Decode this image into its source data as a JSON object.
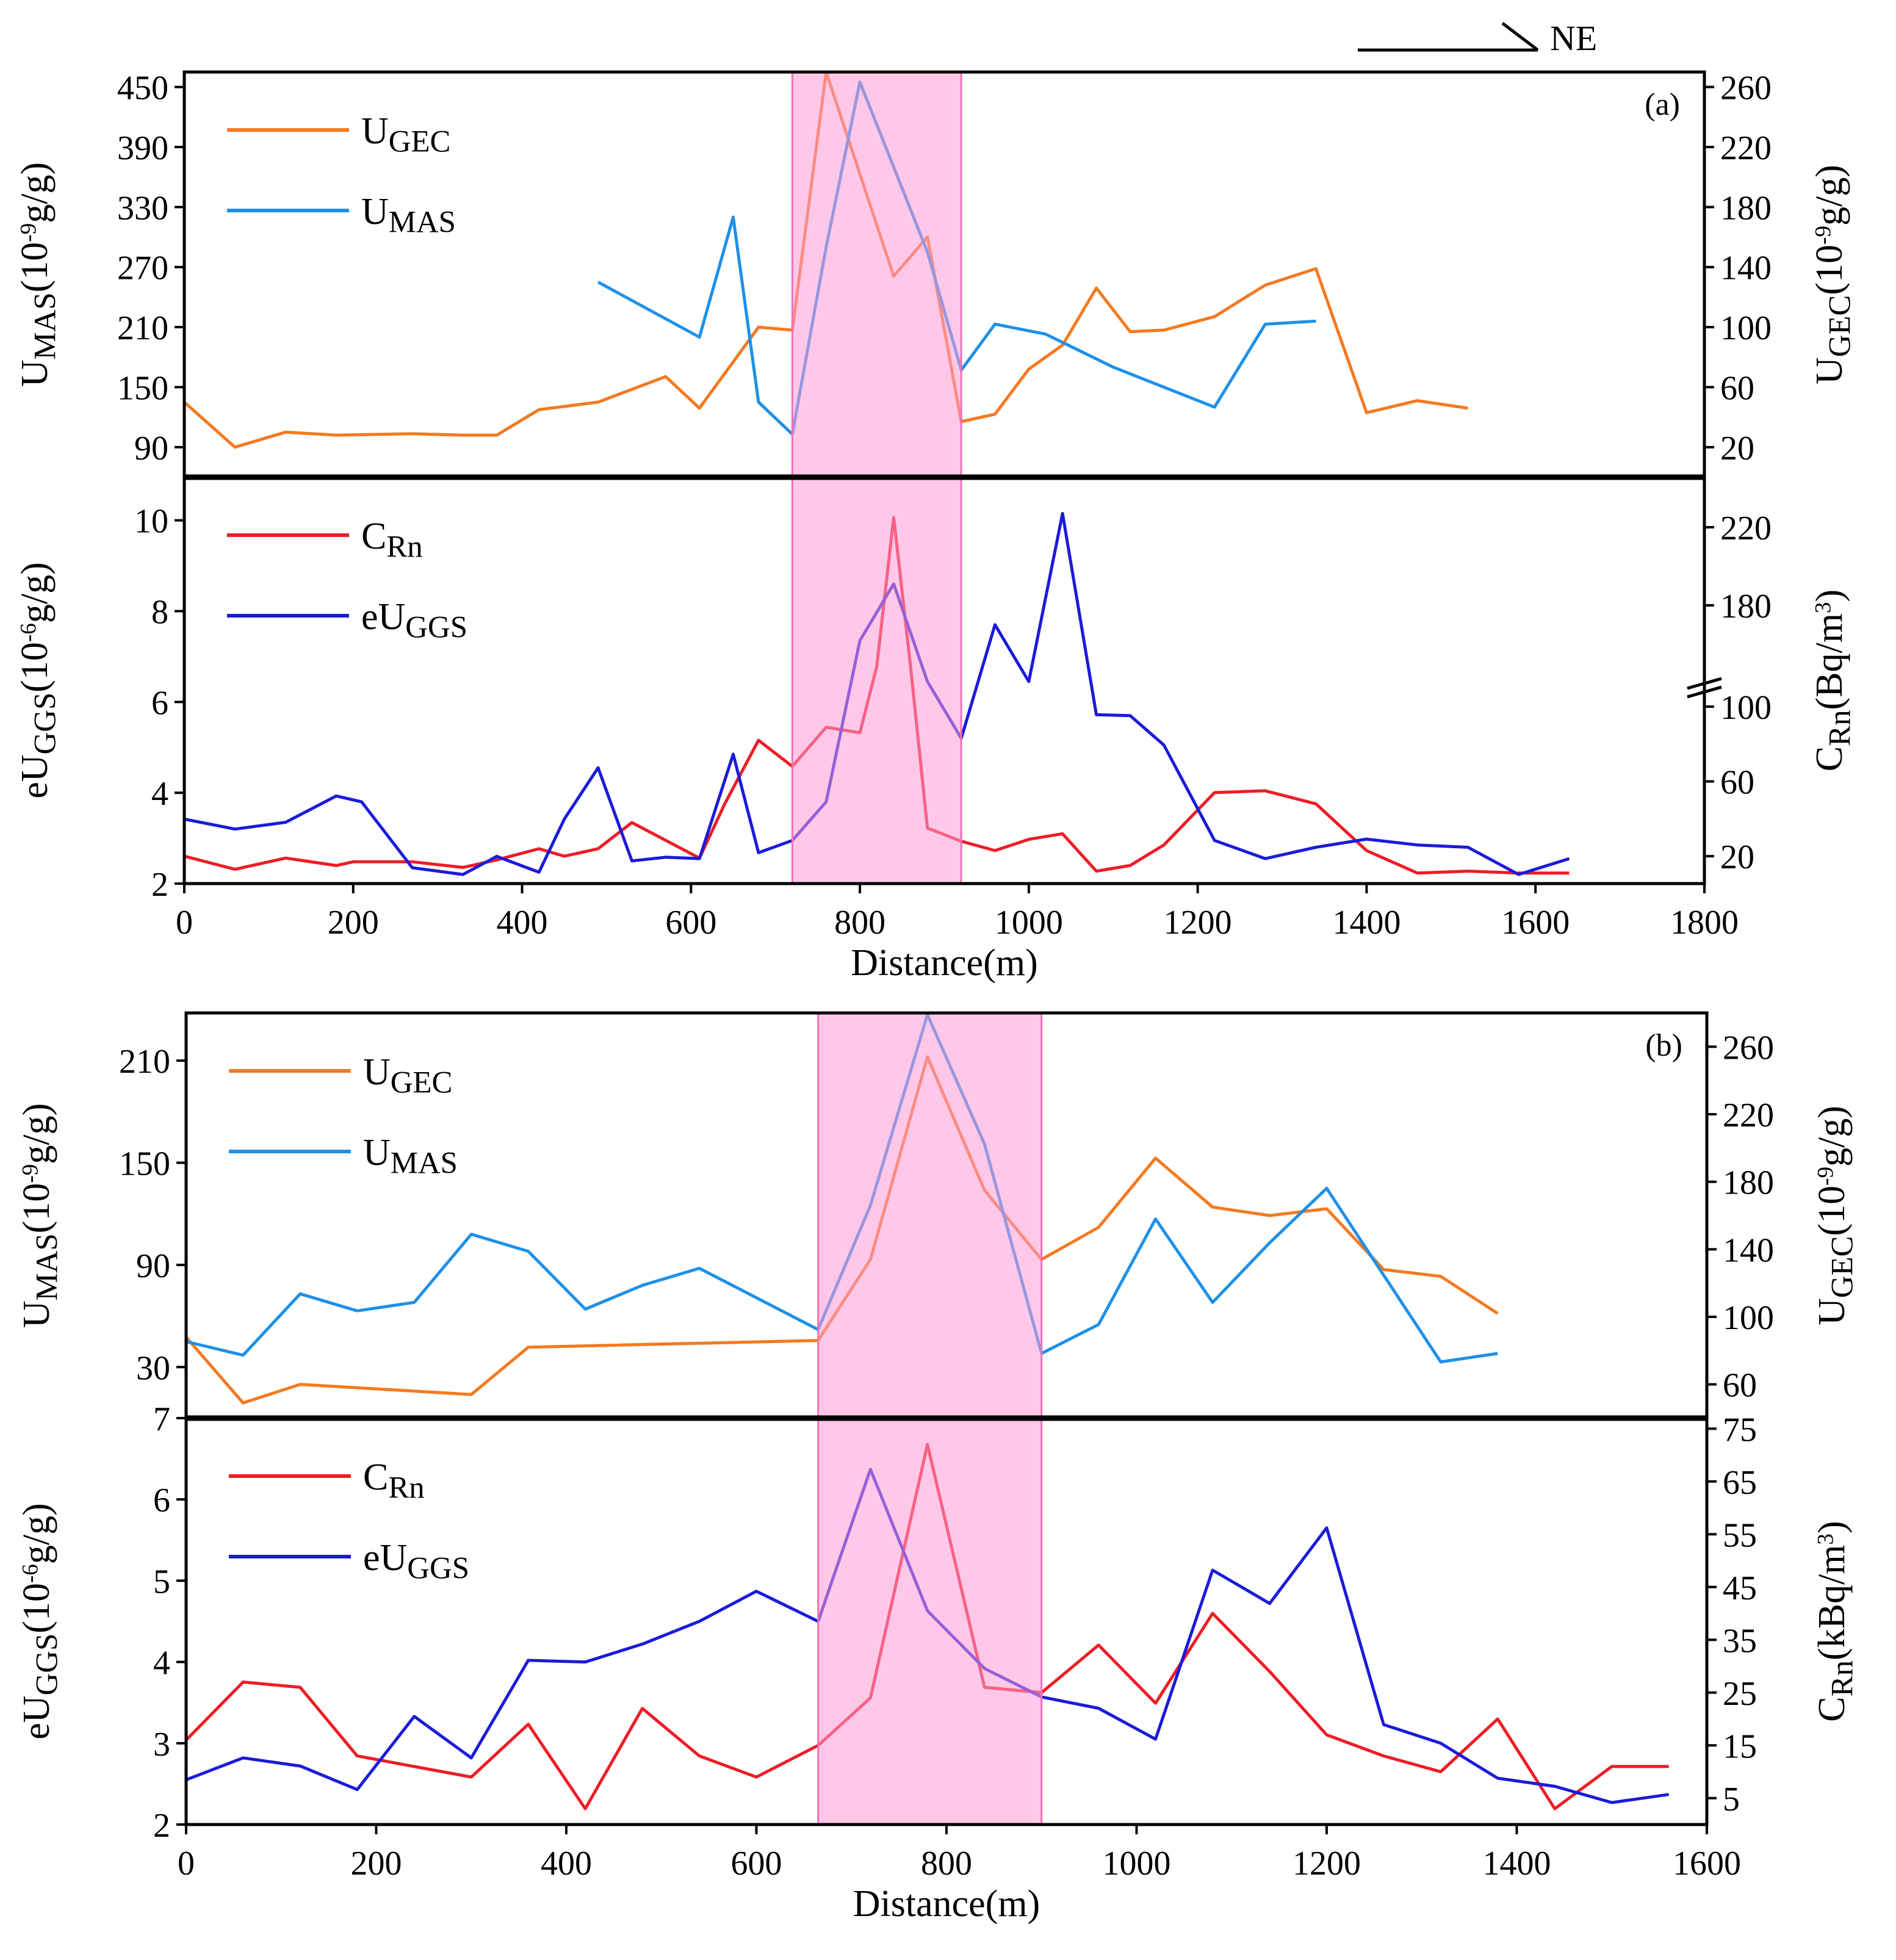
{
  "direction_label": "NE",
  "colors": {
    "ugec": "#F47A20",
    "umas": "#1E90E8",
    "crn": "#EE1C25",
    "euggs": "#1A1ADB",
    "highlight": "#FF9BD6",
    "highlight_border": "#F070B8"
  },
  "chart_data": [
    {
      "id": "a-top",
      "type": "line",
      "panel_label": "(a)",
      "x_range": [
        0,
        1800
      ],
      "y_left": {
        "label_main": "U",
        "label_sub": "MAS",
        "label_unit": "(10",
        "label_exp": "-9",
        "label_tail": "g/g)",
        "range": [
          60,
          465
        ],
        "ticks": [
          90,
          150,
          210,
          270,
          330,
          390,
          450
        ]
      },
      "y_right": {
        "label_main": "U",
        "label_sub": "GEC",
        "label_unit": "(10",
        "label_exp": "-9",
        "label_tail": "g/g)",
        "range": [
          0,
          270
        ],
        "ticks": [
          20,
          60,
          100,
          140,
          180,
          220,
          260
        ]
      },
      "highlight": [
        720,
        920
      ],
      "legend": [
        {
          "key": "ugec",
          "main": "U",
          "sub": "GEC"
        },
        {
          "key": "umas",
          "main": "U",
          "sub": "MAS"
        }
      ],
      "series": [
        {
          "key": "ugec",
          "axis": "right",
          "color_key": "ugec",
          "x": [
            0,
            60,
            120,
            180,
            270,
            330,
            370,
            420,
            490,
            570,
            610,
            680,
            720,
            760,
            840,
            880,
            920,
            960,
            1000,
            1040,
            1080,
            1120,
            1160,
            1220,
            1280,
            1340,
            1400,
            1460,
            1520
          ],
          "y": [
            50,
            20,
            30,
            28,
            29,
            28,
            28,
            45,
            50,
            67,
            46,
            100,
            98,
            270,
            134,
            160,
            37,
            42,
            72,
            88,
            126,
            97,
            98,
            107,
            128,
            139,
            43,
            51,
            46
          ]
        },
        {
          "key": "umas",
          "axis": "left",
          "x": [
            490,
            610,
            650,
            680,
            720,
            760,
            800,
            840,
            880,
            920,
            960,
            1020,
            1100,
            1220,
            1280,
            1340
          ],
          "y": [
            255,
            200,
            320,
            135,
            103,
            290,
            455,
            370,
            285,
            167,
            213,
            203,
            170,
            130,
            213,
            216
          ]
        }
      ]
    },
    {
      "id": "a-bottom",
      "type": "line",
      "x_range": [
        0,
        1800
      ],
      "x_ticks": [
        0,
        200,
        400,
        600,
        800,
        1000,
        1200,
        1400,
        1600,
        1800
      ],
      "x_label": "Distance(m)",
      "y_left": {
        "label_main": "eU",
        "label_sub": "GGS",
        "label_unit": "(10",
        "label_exp": "-6",
        "label_tail": "g/g)",
        "range": [
          2,
          10.95
        ],
        "ticks": [
          2,
          4,
          6,
          8,
          10
        ]
      },
      "y_right": {
        "label_main": "C",
        "label_sub": "Rn",
        "label_unit": "(Bq/m",
        "label_exp": "3",
        "label_tail": ")",
        "ticks": [
          20,
          60,
          100,
          180,
          220
        ],
        "break_note": "axis break between 100 and 180"
      },
      "highlight": [
        720,
        920
      ],
      "legend": [
        {
          "key": "crn",
          "main": "C",
          "sub": "Rn"
        },
        {
          "key": "euggs",
          "main": "eU",
          "sub": "GGS"
        }
      ],
      "series": [
        {
          "key": "crn",
          "axis": "right",
          "x": [
            0,
            60,
            120,
            180,
            200,
            270,
            330,
            370,
            420,
            450,
            490,
            530,
            610,
            640,
            680,
            720,
            760,
            800,
            820,
            840,
            860,
            880,
            920,
            960,
            1000,
            1040,
            1080,
            1120,
            1160,
            1220,
            1280,
            1340,
            1400,
            1460,
            1520,
            1580,
            1640
          ],
          "y": [
            20,
            13,
            19,
            15,
            17,
            17,
            14,
            18,
            24,
            20,
            24,
            38,
            19,
            48,
            82,
            68,
            89,
            86,
            120,
            225,
            120,
            35,
            28,
            23,
            29,
            32,
            12,
            15,
            26,
            54,
            55,
            48,
            23,
            11,
            12,
            11,
            11
          ]
        },
        {
          "key": "euggs",
          "axis": "left",
          "x": [
            0,
            60,
            120,
            180,
            210,
            270,
            330,
            370,
            420,
            450,
            490,
            530,
            570,
            610,
            650,
            680,
            720,
            760,
            800,
            840,
            880,
            920,
            960,
            1000,
            1040,
            1080,
            1120,
            1160,
            1220,
            1280,
            1340,
            1400,
            1460,
            1520,
            1580,
            1640
          ],
          "y": [
            3.42,
            3.2,
            3.35,
            3.93,
            3.8,
            2.35,
            2.2,
            2.6,
            2.25,
            3.42,
            4.55,
            2.5,
            2.58,
            2.55,
            4.85,
            2.68,
            2.95,
            3.8,
            7.35,
            8.6,
            6.45,
            5.2,
            7.7,
            6.45,
            10.15,
            5.72,
            5.7,
            5.05,
            2.95,
            2.55,
            2.8,
            2.98,
            2.85,
            2.8,
            2.2,
            2.55
          ]
        }
      ]
    },
    {
      "id": "b-top",
      "type": "line",
      "panel_label": "(b)",
      "x_range": [
        0,
        1600
      ],
      "y_left": {
        "label_main": "U",
        "label_sub": "MAS",
        "label_unit": "(10",
        "label_exp": "-9",
        "label_tail": "g/g)",
        "range": [
          0,
          238
        ],
        "ticks": [
          30,
          90,
          150,
          210
        ]
      },
      "y_right": {
        "label_main": "U",
        "label_sub": "GEC",
        "label_unit": "(10",
        "label_exp": "-9",
        "label_tail": "g/g)",
        "range": [
          40,
          280
        ],
        "ticks": [
          60,
          100,
          140,
          180,
          220,
          260
        ]
      },
      "highlight": [
        665,
        900
      ],
      "legend": [
        {
          "key": "ugec",
          "main": "U",
          "sub": "GEC"
        },
        {
          "key": "umas",
          "main": "U",
          "sub": "MAS"
        }
      ],
      "series": [
        {
          "key": "ugec",
          "axis": "right",
          "x": [
            0,
            60,
            120,
            300,
            360,
            665,
            720,
            780,
            840,
            900,
            960,
            1020,
            1080,
            1140,
            1200,
            1260,
            1320,
            1380
          ],
          "y": [
            88,
            49,
            60,
            54,
            82,
            86,
            134,
            254,
            175,
            134,
            153,
            194,
            165,
            160,
            164,
            128,
            124,
            102
          ]
        },
        {
          "key": "umas",
          "axis": "left",
          "x": [
            0,
            60,
            120,
            180,
            240,
            300,
            360,
            420,
            480,
            540,
            665,
            720,
            780,
            840,
            900,
            960,
            1020,
            1080,
            1140,
            1200,
            1260,
            1320,
            1380
          ],
          "y": [
            45,
            37,
            73,
            63,
            68,
            108,
            98,
            64,
            78,
            88,
            52,
            125,
            237,
            161,
            38,
            55,
            117,
            68,
            103,
            135,
            84,
            33,
            38
          ]
        }
      ]
    },
    {
      "id": "b-bottom",
      "type": "line",
      "x_range": [
        0,
        1600
      ],
      "x_ticks": [
        0,
        200,
        400,
        600,
        800,
        1000,
        1200,
        1400,
        1600
      ],
      "x_label": "Distance(m)",
      "y_left": {
        "label_main": "eU",
        "label_sub": "GGS",
        "label_unit": "(10",
        "label_exp": "-6",
        "label_tail": "g/g)",
        "range": [
          2,
          7
        ],
        "ticks": [
          2,
          3,
          4,
          5,
          6,
          7
        ]
      },
      "y_right": {
        "label_main": "C",
        "label_sub": "Rn",
        "label_unit": "(kBq/m",
        "label_exp": "3",
        "label_tail": ")",
        "range": [
          0,
          77
        ],
        "ticks": [
          5,
          15,
          25,
          35,
          45,
          55,
          65,
          75
        ]
      },
      "highlight": [
        665,
        900
      ],
      "legend": [
        {
          "key": "crn",
          "main": "C",
          "sub": "Rn"
        },
        {
          "key": "euggs",
          "main": "eU",
          "sub": "GGS"
        }
      ],
      "series": [
        {
          "key": "crn",
          "axis": "right",
          "x": [
            0,
            60,
            120,
            180,
            240,
            300,
            360,
            420,
            480,
            540,
            600,
            665,
            720,
            780,
            840,
            900,
            960,
            1020,
            1080,
            1140,
            1200,
            1260,
            1320,
            1380,
            1440,
            1500,
            1560
          ],
          "y": [
            16,
            27,
            26,
            13,
            11,
            9,
            19,
            3,
            22,
            13,
            9,
            15,
            24,
            72,
            26,
            25,
            34,
            23,
            40,
            29,
            17,
            13,
            10,
            20,
            3,
            11,
            11
          ]
        },
        {
          "key": "euggs",
          "axis": "left",
          "x": [
            0,
            60,
            120,
            180,
            240,
            300,
            360,
            420,
            480,
            540,
            600,
            665,
            720,
            780,
            840,
            900,
            960,
            1020,
            1080,
            1140,
            1200,
            1260,
            1320,
            1380,
            1440,
            1500,
            1560
          ],
          "y": [
            2.55,
            2.82,
            2.72,
            2.43,
            3.33,
            2.82,
            4.02,
            4.0,
            4.22,
            4.5,
            4.87,
            4.5,
            6.37,
            4.63,
            3.92,
            3.57,
            3.43,
            3.05,
            5.13,
            4.72,
            5.65,
            3.23,
            3.0,
            2.57,
            2.47,
            2.27,
            2.37
          ]
        }
      ]
    }
  ]
}
